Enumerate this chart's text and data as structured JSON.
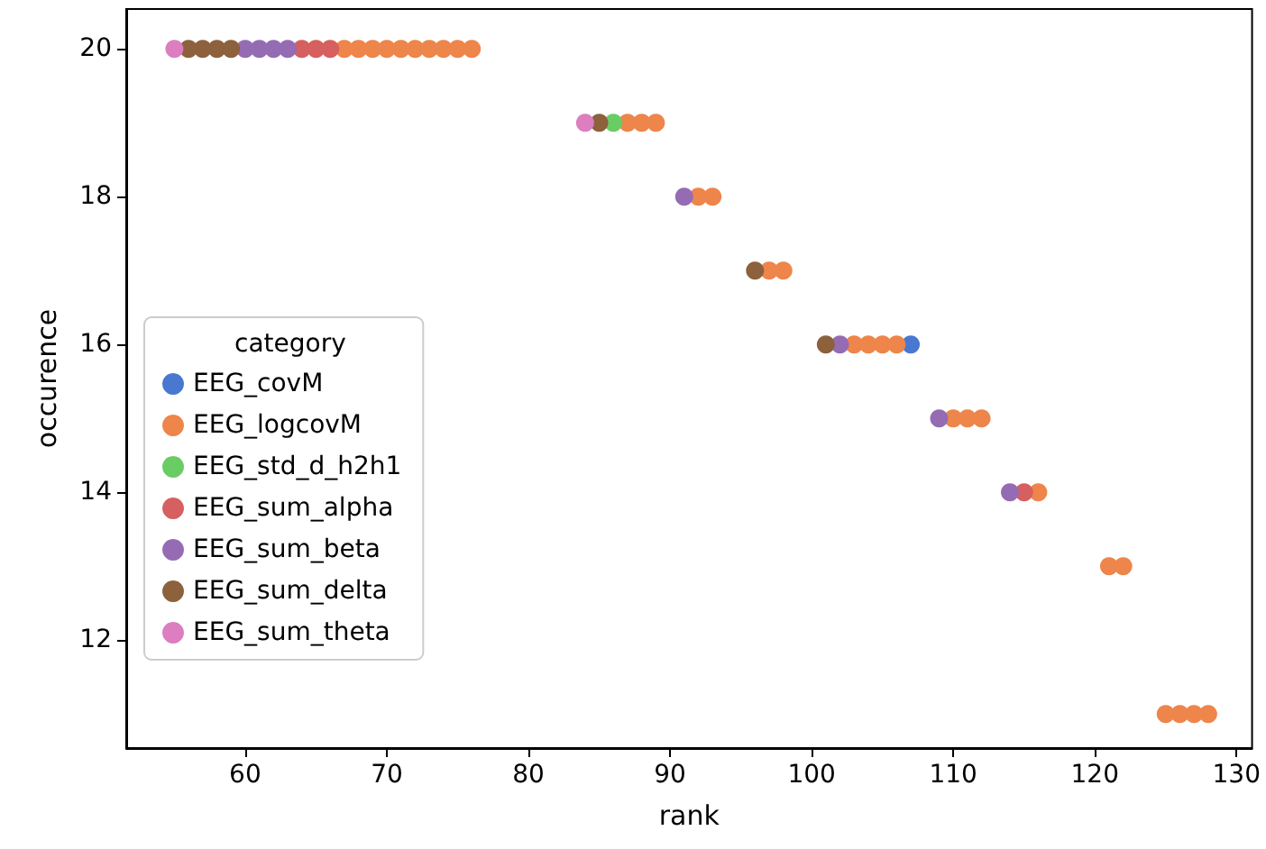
{
  "chart_data": {
    "type": "scatter",
    "xlabel": "rank",
    "ylabel": "occurence",
    "legend_title": "category",
    "legend": "bottom left",
    "grid": false,
    "marker": "circle",
    "xlim": [
      51.6,
      131.1
    ],
    "xticks": [
      60,
      70,
      80,
      90,
      100,
      110,
      120,
      130
    ],
    "ylim": [
      10.54,
      20.54
    ],
    "yticks": [
      12,
      14,
      16,
      18,
      20
    ],
    "series": [
      {
        "name": "EEG_covM",
        "color": "#4878d0",
        "x": [
          107
        ],
        "values": [
          16
        ]
      },
      {
        "name": "EEG_logcovM",
        "color": "#ee854a",
        "x": [
          67,
          68,
          69,
          70,
          71,
          72,
          73,
          74,
          75,
          76,
          87,
          88,
          89,
          92,
          93,
          97,
          98,
          103,
          104,
          105,
          106,
          110,
          111,
          112,
          116,
          121,
          122,
          125,
          126,
          127,
          128
        ],
        "values": [
          20,
          20,
          20,
          20,
          20,
          20,
          20,
          20,
          20,
          20,
          19,
          19,
          19,
          18,
          18,
          17,
          17,
          16,
          16,
          16,
          16,
          15,
          15,
          15,
          14,
          13,
          13,
          11,
          11,
          11,
          11
        ]
      },
      {
        "name": "EEG_std_d_h2h1",
        "color": "#6acc64",
        "x": [
          86
        ],
        "values": [
          19
        ]
      },
      {
        "name": "EEG_sum_alpha",
        "color": "#d65f5f",
        "x": [
          64,
          65,
          66,
          115
        ],
        "values": [
          20,
          20,
          20,
          14
        ]
      },
      {
        "name": "EEG_sum_beta",
        "color": "#956cb4",
        "x": [
          60,
          61,
          62,
          63,
          91,
          102,
          109,
          114
        ],
        "values": [
          20,
          20,
          20,
          20,
          18,
          16,
          15,
          14
        ]
      },
      {
        "name": "EEG_sum_delta",
        "color": "#8c613c",
        "x": [
          56,
          57,
          58,
          59,
          85,
          96,
          101
        ],
        "values": [
          20,
          20,
          20,
          20,
          19,
          17,
          16
        ]
      },
      {
        "name": "EEG_sum_theta",
        "color": "#dc7ec0",
        "x": [
          55,
          84
        ],
        "values": [
          20,
          19
        ]
      }
    ]
  }
}
